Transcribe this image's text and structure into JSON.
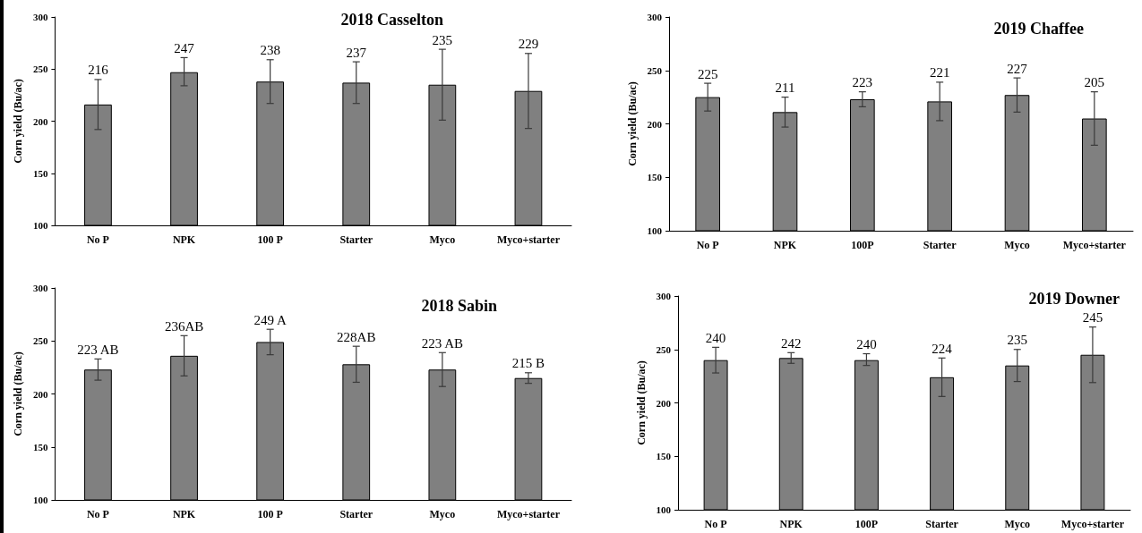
{
  "chart_data": [
    {
      "type": "bar",
      "title": "2018 Casselton",
      "ylabel": "Corn yield (Bu/ac)",
      "categories": [
        "No P",
        "NPK",
        "100 P",
        "Starter",
        "Myco",
        "Myco+starter"
      ],
      "ylim": [
        100,
        300
      ],
      "yticks": [
        100,
        150,
        200,
        250,
        300
      ],
      "grid": false,
      "color": "#808080",
      "values": [
        216,
        247,
        238,
        237,
        235,
        229
      ],
      "value_labels": [
        "216",
        "247",
        "238",
        "237",
        "235",
        "229"
      ],
      "errors": [
        [
          192,
          240
        ],
        [
          234,
          261
        ],
        [
          217,
          259
        ],
        [
          217,
          257
        ],
        [
          201,
          269
        ],
        [
          193,
          265
        ]
      ]
    },
    {
      "type": "bar",
      "title": "2019 Chaffee",
      "ylabel": "Corn yield (Bu/ac)",
      "categories": [
        "No P",
        "NPK",
        "100P",
        "Starter",
        "Myco",
        "Myco+starter"
      ],
      "ylim": [
        100,
        300
      ],
      "yticks": [
        100,
        150,
        200,
        250,
        300
      ],
      "grid": false,
      "color": "#808080",
      "values": [
        225,
        211,
        223,
        221,
        227,
        205
      ],
      "value_labels": [
        "225",
        "211",
        "223",
        "221",
        "227",
        "205"
      ],
      "errors": [
        [
          212,
          238
        ],
        [
          197,
          225
        ],
        [
          216,
          230
        ],
        [
          203,
          239
        ],
        [
          211,
          243
        ],
        [
          180,
          230
        ]
      ]
    },
    {
      "type": "bar",
      "title": "2018 Sabin",
      "ylabel": "Corn yield (Bu/ac)",
      "categories": [
        "No P",
        "NPK",
        "100 P",
        "Starter",
        "Myco",
        "Myco+starter"
      ],
      "ylim": [
        100,
        300
      ],
      "yticks": [
        100,
        150,
        200,
        250,
        300
      ],
      "grid": false,
      "color": "#808080",
      "values": [
        223,
        236,
        249,
        228,
        223,
        215
      ],
      "value_labels": [
        "223 AB",
        "236AB",
        "249 A",
        "228AB",
        "223 AB",
        "215 B"
      ],
      "errors": [
        [
          213,
          233
        ],
        [
          217,
          255
        ],
        [
          237,
          261
        ],
        [
          211,
          245
        ],
        [
          207,
          239
        ],
        [
          210,
          220
        ]
      ]
    },
    {
      "type": "bar",
      "title": "2019 Downer",
      "ylabel": "Corn yield (Bu/ac)",
      "categories": [
        "No P",
        "NPK",
        "100P",
        "Starter",
        "Myco",
        "Myco+starter"
      ],
      "ylim": [
        100,
        300
      ],
      "yticks": [
        100,
        150,
        200,
        250,
        300
      ],
      "grid": false,
      "color": "#808080",
      "values": [
        240,
        242,
        240,
        224,
        235,
        245
      ],
      "value_labels": [
        "240",
        "242",
        "240",
        "224",
        "235",
        "245"
      ],
      "errors": [
        [
          228,
          252
        ],
        [
          237,
          247
        ],
        [
          235,
          246
        ],
        [
          206,
          242
        ],
        [
          220,
          250
        ],
        [
          219,
          271
        ]
      ]
    }
  ]
}
